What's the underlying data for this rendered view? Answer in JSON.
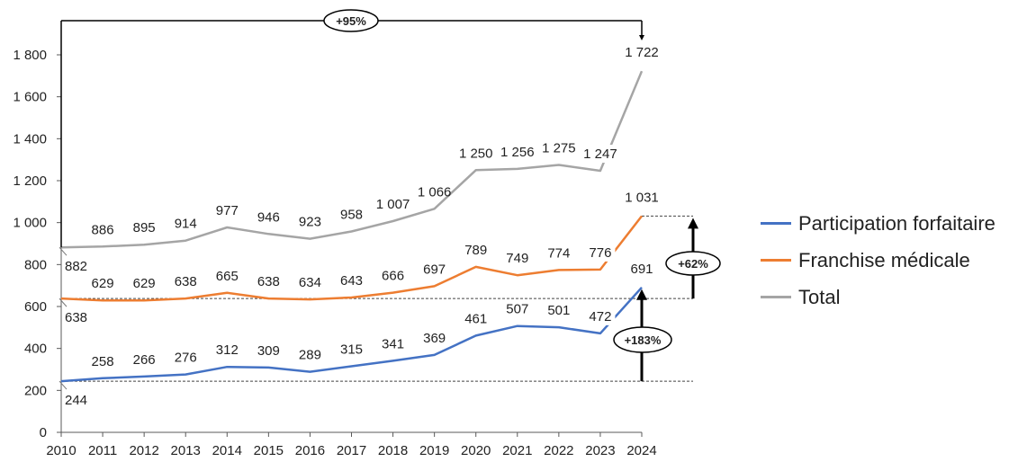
{
  "chart_data": {
    "type": "line",
    "x": [
      "2010",
      "2011",
      "2012",
      "2013",
      "2014",
      "2015",
      "2016",
      "2017",
      "2018",
      "2019",
      "2020",
      "2021",
      "2022",
      "2023",
      "2024"
    ],
    "ylim": [
      0,
      1800
    ],
    "yticks": [
      0,
      200,
      400,
      600,
      800,
      1000,
      1200,
      1400,
      1600,
      1800
    ],
    "ytick_labels": [
      "0",
      "200",
      "400",
      "600",
      "800",
      "1 000",
      "1 200",
      "1 400",
      "1 600",
      "1 800"
    ],
    "series": [
      {
        "name": "Participation forfaitaire",
        "color": "#4472C4",
        "values": [
          244,
          258,
          266,
          276,
          312,
          309,
          289,
          315,
          341,
          369,
          461,
          507,
          501,
          472,
          691
        ],
        "labels": [
          "244",
          "258",
          "266",
          "276",
          "312",
          "309",
          "289",
          "315",
          "341",
          "369",
          "461",
          "507",
          "501",
          "472",
          "691"
        ]
      },
      {
        "name": "Franchise médicale",
        "color": "#ED7D31",
        "values": [
          638,
          629,
          629,
          638,
          665,
          638,
          634,
          643,
          666,
          697,
          789,
          749,
          774,
          776,
          1031
        ],
        "labels": [
          "638",
          "629",
          "629",
          "638",
          "665",
          "638",
          "634",
          "643",
          "666",
          "697",
          "789",
          "749",
          "774",
          "776",
          "1 031"
        ]
      },
      {
        "name": "Total",
        "color": "#A5A5A5",
        "values": [
          882,
          886,
          895,
          914,
          977,
          946,
          923,
          958,
          1007,
          1066,
          1250,
          1256,
          1275,
          1247,
          1722
        ],
        "labels": [
          "882",
          "886",
          "895",
          "914",
          "977",
          "946",
          "923",
          "958",
          "1 007",
          "1 066",
          "1 250",
          "1 256",
          "1 275",
          "1 247",
          "1 722"
        ]
      }
    ],
    "annotations": [
      "+95%",
      "+62%",
      "+183%"
    ],
    "legend_position": "right",
    "grid": false
  }
}
